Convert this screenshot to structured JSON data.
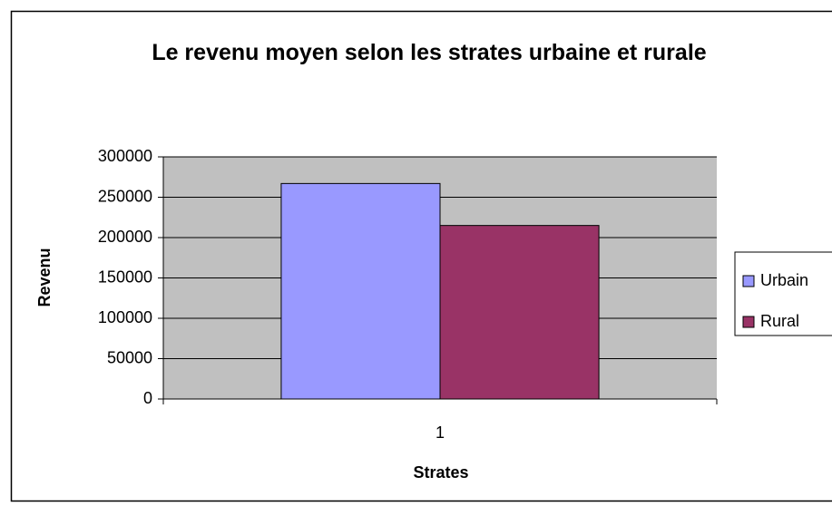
{
  "chart_data": {
    "type": "bar",
    "title": "Le revenu moyen selon les strates urbaine et rurale",
    "x_label": "Strates",
    "y_label": "Revenu",
    "categories": [
      "1"
    ],
    "series": [
      {
        "name": "Urbain",
        "color": "#9999ff",
        "values": [
          267000
        ]
      },
      {
        "name": "Rural",
        "color": "#993366",
        "values": [
          215000
        ]
      }
    ],
    "ylim": [
      0,
      300000
    ],
    "yticks": [
      0,
      50000,
      100000,
      150000,
      200000,
      250000,
      300000
    ],
    "grid": true,
    "legend": "right"
  }
}
